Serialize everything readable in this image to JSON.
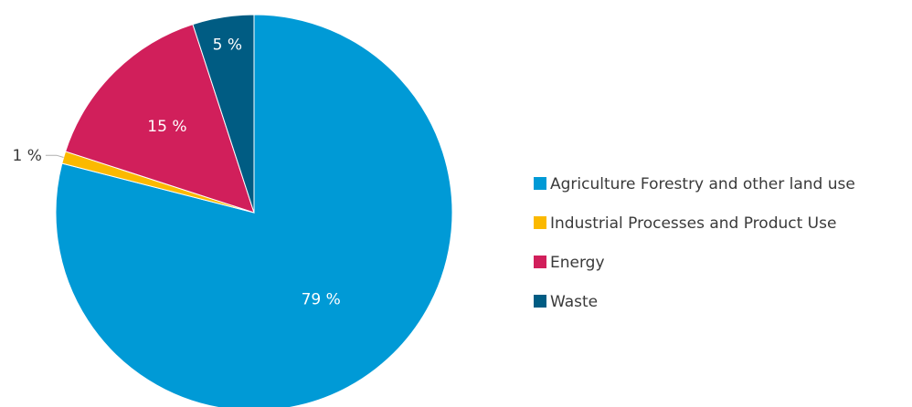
{
  "chart_data": {
    "type": "pie",
    "slices": [
      {
        "label": "Agriculture Forestry and other land use",
        "value": 79,
        "display": "79 %",
        "color": "#009ad6"
      },
      {
        "label": "Industrial Processes and Product Use",
        "value": 1,
        "display": "1 %",
        "color": "#fbb900"
      },
      {
        "label": "Energy",
        "value": 15,
        "display": "15 %",
        "color": "#d11f5b"
      },
      {
        "label": "Waste",
        "value": 5,
        "display": "5 %",
        "color": "#005c83"
      }
    ],
    "start_angle_deg": 0,
    "direction": "clockwise",
    "legend_position": "right"
  }
}
